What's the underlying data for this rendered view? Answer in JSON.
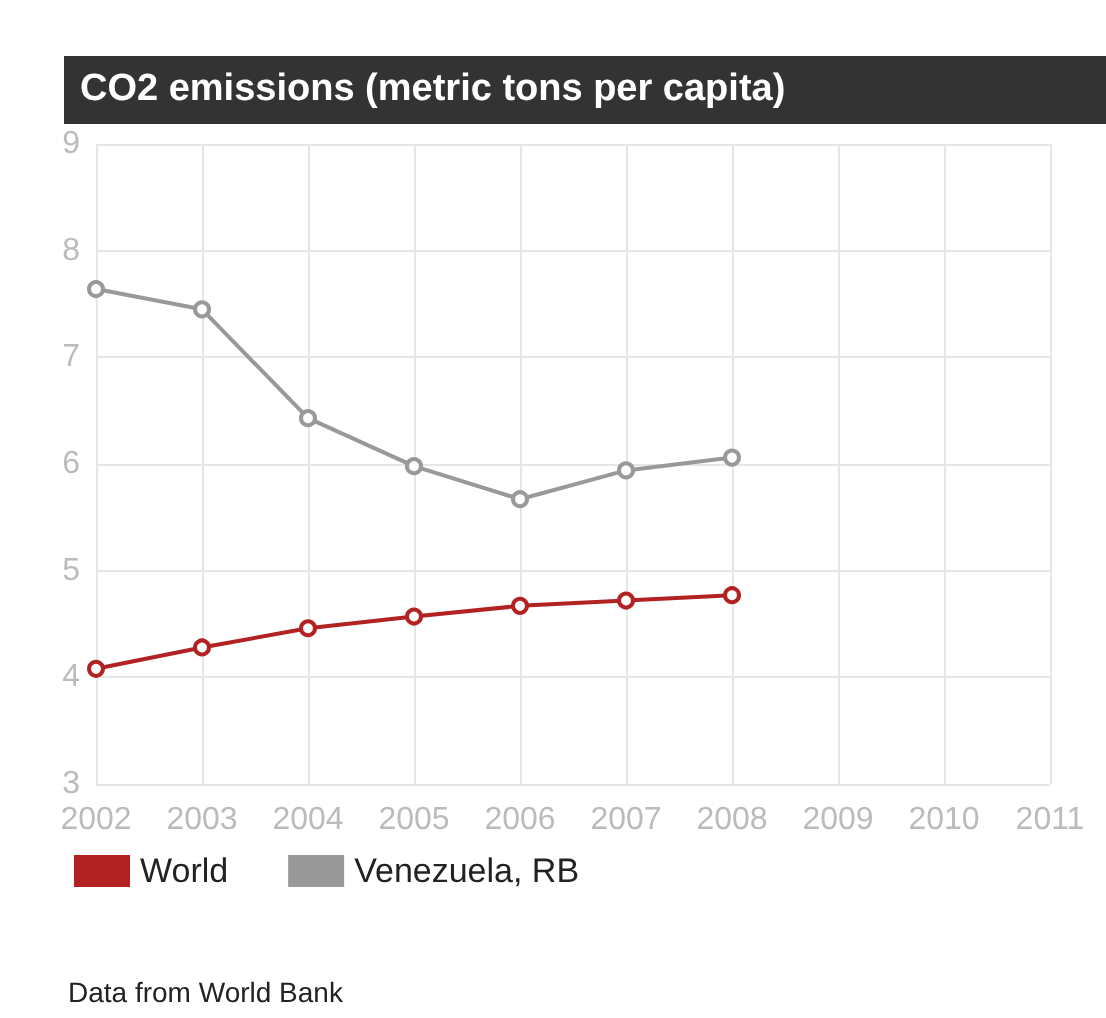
{
  "chart_data": {
    "type": "line",
    "title": "CO2 emissions (metric tons per capita)",
    "x": [
      2002,
      2003,
      2004,
      2005,
      2006,
      2007,
      2008
    ],
    "series": [
      {
        "name": "World",
        "color": "#b22222",
        "values": [
          4.08,
          4.28,
          4.46,
          4.57,
          4.67,
          4.72,
          4.77
        ]
      },
      {
        "name": "Venezuela, RB",
        "color": "#999999",
        "values": [
          7.64,
          7.45,
          6.43,
          5.98,
          5.67,
          5.94,
          6.06
        ]
      }
    ],
    "xlim": [
      2002,
      2011
    ],
    "xticks": [
      2002,
      2003,
      2004,
      2005,
      2006,
      2007,
      2008,
      2009,
      2010,
      2011
    ],
    "ylim": [
      3,
      9
    ],
    "yticks": [
      3,
      4,
      5,
      6,
      7,
      8,
      9
    ],
    "grid": true,
    "legend": "bottom left",
    "marker": "circle",
    "line_style": "solid",
    "annotations": [
      "Data from World Bank"
    ]
  }
}
